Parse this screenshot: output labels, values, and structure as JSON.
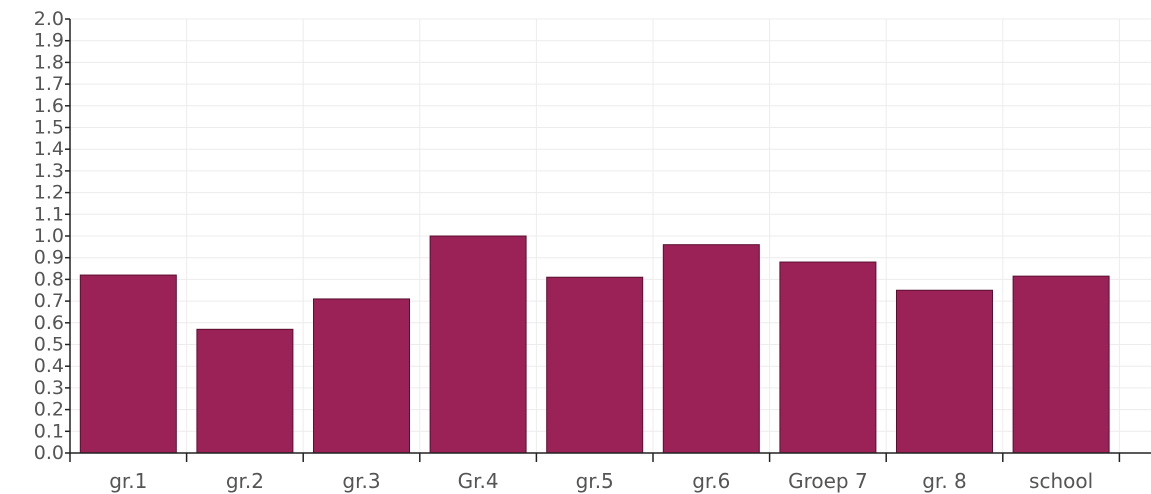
{
  "chart_data": {
    "type": "bar",
    "categories": [
      "gr.1",
      "gr.2",
      "gr.3",
      "Gr.4",
      "gr.5",
      "gr.6",
      "Groep 7",
      "gr. 8",
      "school"
    ],
    "series": [
      {
        "values": [
          0.82,
          0.57,
          0.71,
          1.0,
          0.81,
          0.96,
          0.88,
          0.75,
          0.815
        ]
      }
    ],
    "ylim": [
      0,
      2.0
    ],
    "ytick_step": 0.1,
    "yticks": [
      "0.0",
      "0.1",
      "0.2",
      "0.3",
      "0.4",
      "0.5",
      "0.6",
      "0.7",
      "0.8",
      "0.9",
      "1.0",
      "1.1",
      "1.2",
      "1.3",
      "1.4",
      "1.5",
      "1.6",
      "1.7",
      "1.8",
      "1.9",
      "2.0"
    ],
    "grid": true,
    "legend": "none",
    "colors": {
      "bar": "#9a2257",
      "bar_edge": "#5b0f30",
      "grid": "#ececec",
      "axis": "#222222",
      "text": "#555555"
    }
  }
}
